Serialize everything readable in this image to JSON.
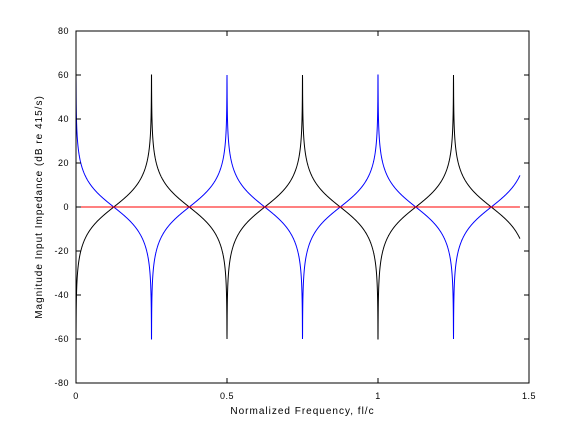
{
  "chart_data": {
    "type": "line",
    "title": "",
    "xlabel": "Normalized Frequency, fl/c",
    "ylabel": "Magnitude Input Impedance (dB re 415/s)",
    "xlim": [
      0,
      1.5
    ],
    "ylim": [
      -80,
      80
    ],
    "x_ticks": [
      "0",
      "0.5",
      "1",
      "1.5"
    ],
    "y_ticks": [
      "80",
      "60",
      "40",
      "20",
      "0",
      "-20",
      "-40",
      "-60",
      "-80"
    ],
    "x_tick_values": [
      0,
      0.5,
      1,
      1.5
    ],
    "y_tick_values": [
      80,
      60,
      40,
      20,
      0,
      -20,
      -40,
      -60,
      -80
    ],
    "grid": false,
    "x_range_of_curves": [
      0,
      1.47
    ],
    "clip_db": 60,
    "series": [
      {
        "name": "",
        "color": "#000000",
        "function": "20*log10(|tan(2*pi*x)|)"
      },
      {
        "name": "",
        "color": "#0000ff",
        "function": "-20*log10(|tan(2*pi*x)|)"
      },
      {
        "name": "",
        "color": "#ff0000",
        "function": "0"
      }
    ],
    "peak_x": [
      0,
      0.25,
      0.5,
      0.75,
      1.0,
      1.25
    ],
    "crossing_x": [
      0.125,
      0.375,
      0.625,
      0.875,
      1.125,
      1.375
    ]
  }
}
